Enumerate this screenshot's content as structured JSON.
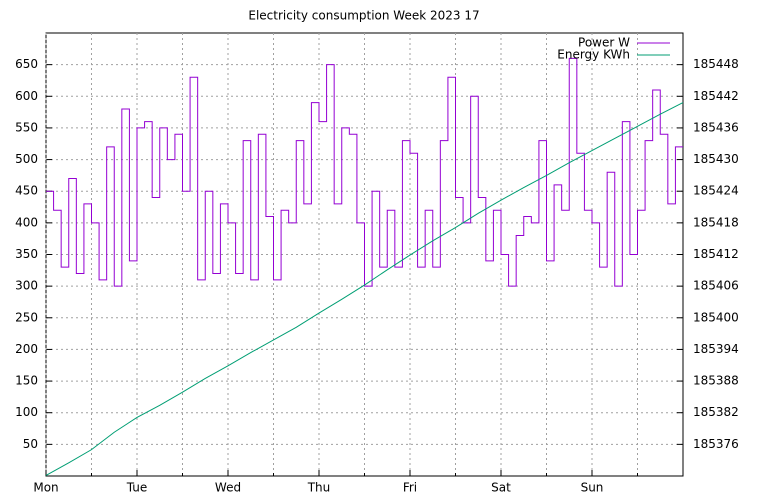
{
  "chart_data": {
    "type": "line",
    "title": "Electricity consumption Week 2023 17",
    "xlim": [
      0,
      168
    ],
    "xticks": [
      {
        "value": 0,
        "label": "Mon"
      },
      {
        "value": 24,
        "label": "Tue"
      },
      {
        "value": 48,
        "label": "Wed"
      },
      {
        "value": 72,
        "label": "Thu"
      },
      {
        "value": 96,
        "label": "Fri"
      },
      {
        "value": 120,
        "label": "Sat"
      },
      {
        "value": 144,
        "label": "Sun"
      }
    ],
    "xminorticks": [
      12,
      36,
      60,
      84,
      108,
      132,
      156
    ],
    "ylim": [
      0,
      700
    ],
    "yticks": [
      50,
      100,
      150,
      200,
      250,
      300,
      350,
      400,
      450,
      500,
      550,
      600,
      650
    ],
    "y2lim": [
      185370,
      185454
    ],
    "y2ticks": [
      185376,
      185382,
      185388,
      185394,
      185400,
      185406,
      185412,
      185418,
      185424,
      185430,
      185436,
      185442,
      185448
    ],
    "grid": true,
    "legend": "top-right",
    "series": [
      {
        "name": "Power W",
        "color": "#9400d3",
        "step": true,
        "x": [
          0,
          2,
          4,
          6,
          8,
          10,
          12,
          14,
          16,
          18,
          20,
          22,
          24,
          26,
          28,
          30,
          32,
          34,
          36,
          38,
          40,
          42,
          44,
          46,
          48,
          50,
          52,
          54,
          56,
          58,
          60,
          62,
          64,
          66,
          68,
          70,
          72,
          74,
          76,
          78,
          80,
          82,
          84,
          86,
          88,
          90,
          92,
          94,
          96,
          98,
          100,
          102,
          104,
          106,
          108,
          110,
          112,
          114,
          116,
          118,
          120,
          122,
          124,
          126,
          128,
          130,
          132,
          134,
          136,
          138,
          140,
          142,
          144,
          146,
          148,
          150,
          152,
          154,
          156,
          158,
          160,
          162,
          164,
          166
        ],
        "values": [
          450,
          420,
          330,
          470,
          320,
          430,
          400,
          310,
          520,
          300,
          580,
          340,
          550,
          560,
          440,
          550,
          500,
          540,
          450,
          630,
          310,
          450,
          320,
          430,
          400,
          320,
          530,
          310,
          540,
          410,
          310,
          420,
          400,
          530,
          430,
          590,
          560,
          650,
          430,
          550,
          540,
          400,
          300,
          450,
          330,
          420,
          330,
          530,
          510,
          330,
          420,
          330,
          530,
          630,
          440,
          400,
          600,
          440,
          340,
          420,
          350,
          300,
          380,
          410,
          400,
          530,
          340,
          460,
          420,
          660,
          510,
          420,
          400,
          330,
          480,
          300,
          560,
          350,
          420,
          530,
          610,
          540,
          430,
          520
        ]
      },
      {
        "name": "Energy KWh",
        "color": "#009e73",
        "axis": "y2",
        "x": [
          0,
          6,
          12,
          18,
          24,
          30,
          36,
          42,
          48,
          54,
          60,
          66,
          72,
          78,
          84,
          90,
          96,
          102,
          108,
          114,
          120,
          126,
          132,
          138,
          144,
          150,
          156,
          162,
          168
        ],
        "values": [
          185370.1,
          185372.5,
          185375.0,
          185378.3,
          185381.1,
          185383.4,
          185385.9,
          185388.5,
          185390.9,
          185393.4,
          185395.8,
          185398.2,
          185400.9,
          185403.5,
          185406.2,
          185409.1,
          185411.9,
          185414.6,
          185417.1,
          185419.8,
          185422.3,
          185424.7,
          185427.0,
          185429.4,
          185431.7,
          185434.0,
          185436.3,
          185438.6,
          185440.8
        ]
      }
    ]
  }
}
